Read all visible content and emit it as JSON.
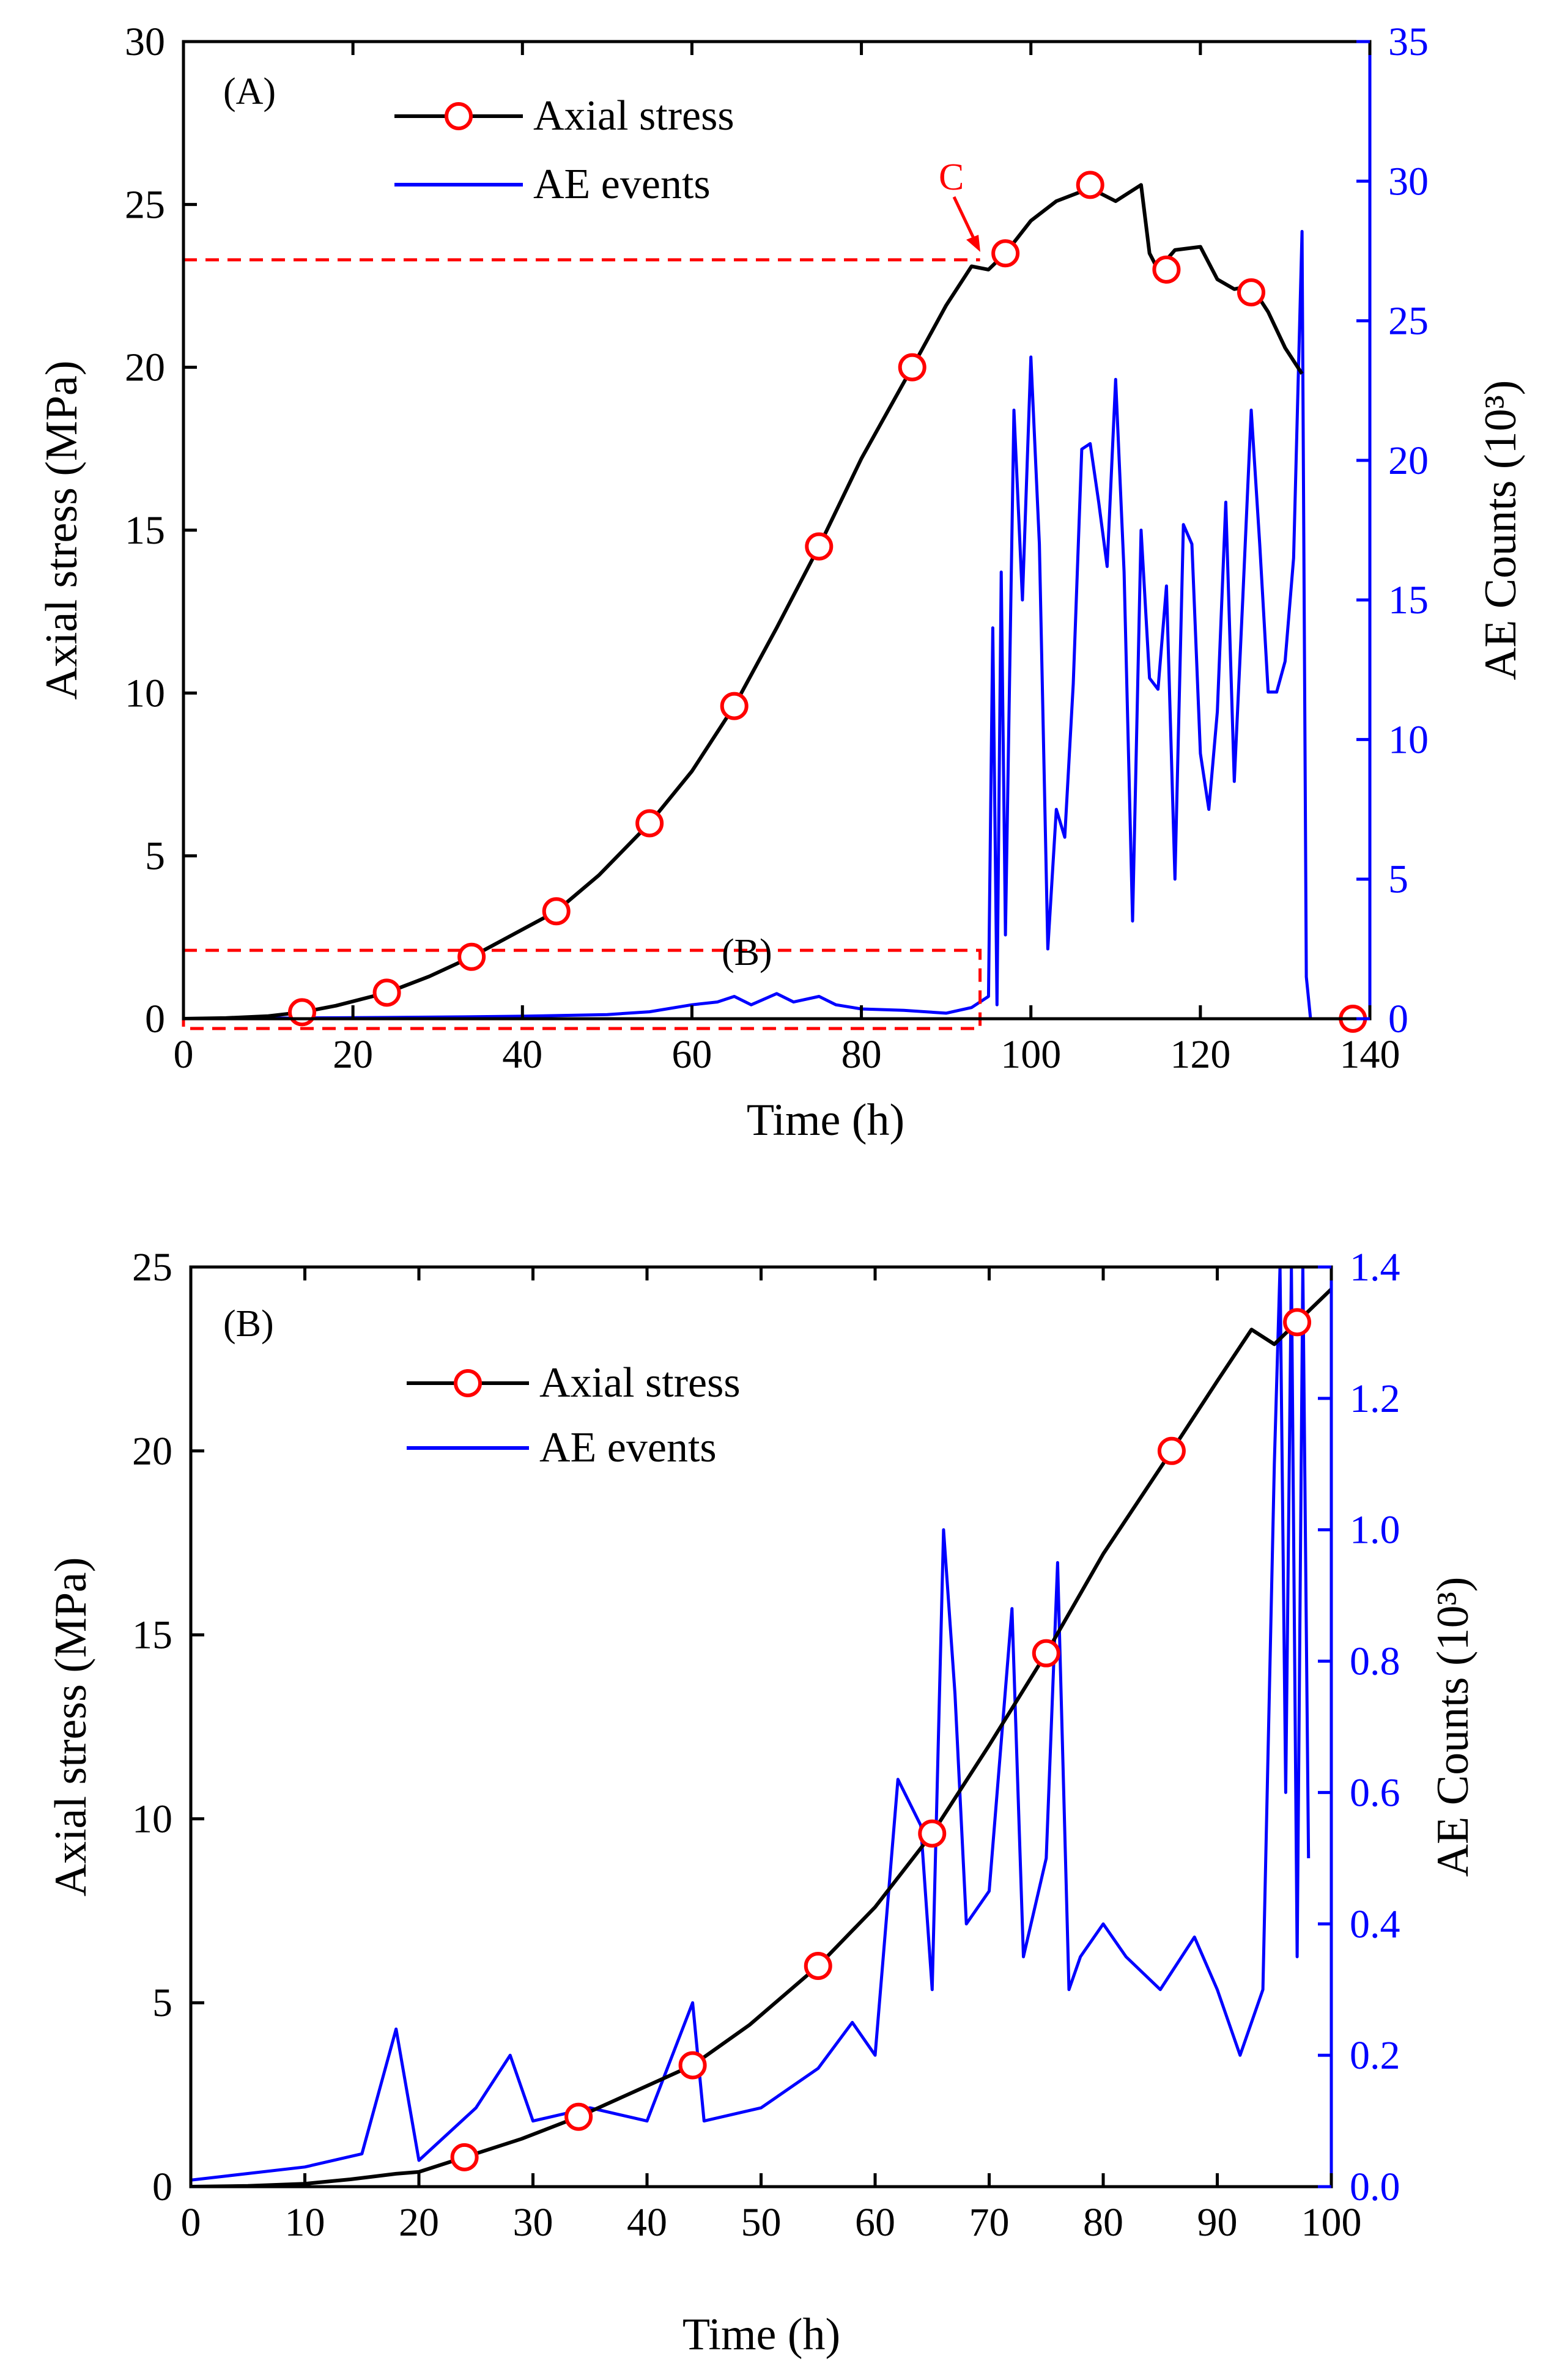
{
  "colors": {
    "stress_line": "#000000",
    "stress_marker": "#ff0000",
    "ae_line": "#0000ff",
    "annotation": "#ff0000"
  },
  "chart_data": [
    {
      "type": "line",
      "panel_label": "(A)",
      "xlabel": "Time (h)",
      "ylabel": "Axial stress (MPa)",
      "y2label": "AE Counts (10³)",
      "xlim": [
        0,
        140
      ],
      "ylim": [
        0,
        30
      ],
      "y2lim": [
        0,
        35
      ],
      "xticks": [
        "0",
        "20",
        "40",
        "60",
        "80",
        "100",
        "120",
        "140"
      ],
      "yticks": [
        "0",
        "5",
        "10",
        "15",
        "20",
        "25",
        "30"
      ],
      "y2ticks": [
        "0",
        "5",
        "10",
        "15",
        "20",
        "25",
        "30",
        "35"
      ],
      "legend_position": "top-left",
      "annotations": [
        {
          "text": "C",
          "x": 93,
          "y": 23.3
        },
        {
          "text": "(B)",
          "x": 70,
          "y": 1.6
        }
      ],
      "series": [
        {
          "name": "Axial stress",
          "axis": "left",
          "x": [
            0,
            5,
            10,
            14,
            18,
            24,
            29,
            34,
            39,
            44,
            49,
            55,
            60,
            65,
            70,
            75,
            80,
            86,
            90,
            93,
            95,
            97,
            100,
            103,
            107,
            110,
            113,
            114,
            115,
            117,
            120,
            122,
            124,
            126,
            128,
            130,
            132
          ],
          "values": [
            0.0,
            0.02,
            0.08,
            0.2,
            0.4,
            0.8,
            1.3,
            1.9,
            2.6,
            3.3,
            4.4,
            6.0,
            7.6,
            9.6,
            12.0,
            14.5,
            17.2,
            20.0,
            21.9,
            23.1,
            23.0,
            23.5,
            24.5,
            25.1,
            25.5,
            25.1,
            25.6,
            23.5,
            23.0,
            23.6,
            23.7,
            22.7,
            22.4,
            22.5,
            21.7,
            20.6,
            19.8
          ],
          "markers_x": [
            14,
            24,
            34,
            44,
            55,
            65,
            75,
            86,
            97,
            107,
            116,
            126,
            138
          ],
          "markers_y": [
            0.2,
            0.8,
            1.9,
            3.3,
            6.0,
            9.6,
            14.5,
            20.0,
            23.5,
            25.6,
            23.0,
            22.3,
            0.0
          ]
        },
        {
          "name": "AE events",
          "axis": "right",
          "x": [
            0,
            10,
            20,
            30,
            40,
            50,
            55,
            60,
            63,
            65,
            67,
            70,
            72,
            75,
            77,
            80,
            85,
            90,
            93,
            95,
            95.5,
            96,
            96.5,
            97,
            98,
            99,
            100,
            101,
            102,
            103,
            104,
            105,
            106,
            107,
            108,
            109,
            110,
            111,
            112,
            113,
            114,
            115,
            116,
            117,
            118,
            119,
            120,
            121,
            122,
            123,
            124,
            125,
            126,
            127,
            128,
            129,
            130,
            131,
            132,
            132.5,
            133
          ],
          "values": [
            0.01,
            0.02,
            0.04,
            0.06,
            0.09,
            0.15,
            0.25,
            0.5,
            0.6,
            0.8,
            0.5,
            0.9,
            0.6,
            0.8,
            0.5,
            0.35,
            0.3,
            0.2,
            0.4,
            0.8,
            14.0,
            0.5,
            16.0,
            3.0,
            21.8,
            15.0,
            23.7,
            17.0,
            2.5,
            7.5,
            6.5,
            12.0,
            20.4,
            20.6,
            18.5,
            16.2,
            22.9,
            16.0,
            3.5,
            17.5,
            12.2,
            11.8,
            15.5,
            5.0,
            17.7,
            17.0,
            9.5,
            7.5,
            11.0,
            18.5,
            8.5,
            15.0,
            21.8,
            17.0,
            11.7,
            11.7,
            12.8,
            16.5,
            28.2,
            1.5,
            0.0
          ]
        }
      ]
    },
    {
      "type": "line",
      "panel_label": "(B)",
      "xlabel": "Time (h)",
      "ylabel": "Axial stress (MPa)",
      "y2label": "AE Counts (10³)",
      "xlim": [
        0,
        100
      ],
      "ylim": [
        0,
        25
      ],
      "y2lim": [
        0,
        1.4
      ],
      "xticks": [
        "0",
        "10",
        "20",
        "30",
        "40",
        "50",
        "60",
        "70",
        "80",
        "90",
        "100"
      ],
      "yticks": [
        "0",
        "5",
        "10",
        "15",
        "20",
        "25"
      ],
      "y2ticks": [
        "0.0",
        "0.2",
        "0.4",
        "0.6",
        "0.8",
        "1.0",
        "1.2",
        "1.4"
      ],
      "legend_position": "top-left",
      "series": [
        {
          "name": "Axial stress",
          "axis": "left",
          "x": [
            0,
            5,
            10,
            14,
            18,
            20,
            24,
            29,
            34,
            39,
            44,
            49,
            55,
            60,
            65,
            70,
            75,
            80,
            86,
            90,
            93,
            95,
            97,
            100
          ],
          "values": [
            0.0,
            0.02,
            0.08,
            0.2,
            0.35,
            0.4,
            0.8,
            1.3,
            1.9,
            2.6,
            3.3,
            4.4,
            6.0,
            7.6,
            9.6,
            12.0,
            14.5,
            17.2,
            20.0,
            21.9,
            23.3,
            22.9,
            23.5,
            24.4
          ],
          "markers_x": [
            24,
            34,
            44,
            55,
            65,
            75,
            86,
            97
          ],
          "markers_y": [
            0.8,
            1.9,
            3.3,
            6.0,
            9.6,
            14.5,
            20.0,
            23.5
          ]
        },
        {
          "name": "AE events",
          "axis": "right",
          "x": [
            0,
            5,
            10,
            15,
            18,
            20,
            25,
            28,
            30,
            35,
            40,
            44,
            45,
            50,
            55,
            58,
            60,
            62,
            64,
            65,
            66,
            67,
            68,
            70,
            72,
            73,
            75,
            76,
            77,
            78,
            80,
            82,
            85,
            88,
            90,
            92,
            94,
            95,
            95.5,
            96,
            96.5,
            97,
            97.5,
            98
          ],
          "values": [
            0.01,
            0.02,
            0.03,
            0.05,
            0.24,
            0.04,
            0.12,
            0.2,
            0.1,
            0.12,
            0.1,
            0.28,
            0.1,
            0.12,
            0.18,
            0.25,
            0.2,
            0.62,
            0.55,
            0.3,
            1.0,
            0.75,
            0.4,
            0.45,
            0.88,
            0.35,
            0.5,
            0.95,
            0.3,
            0.35,
            0.4,
            0.35,
            0.3,
            0.38,
            0.3,
            0.2,
            0.3,
            1.1,
            1.4,
            0.6,
            1.4,
            0.35,
            1.4,
            0.5
          ]
        }
      ]
    }
  ]
}
